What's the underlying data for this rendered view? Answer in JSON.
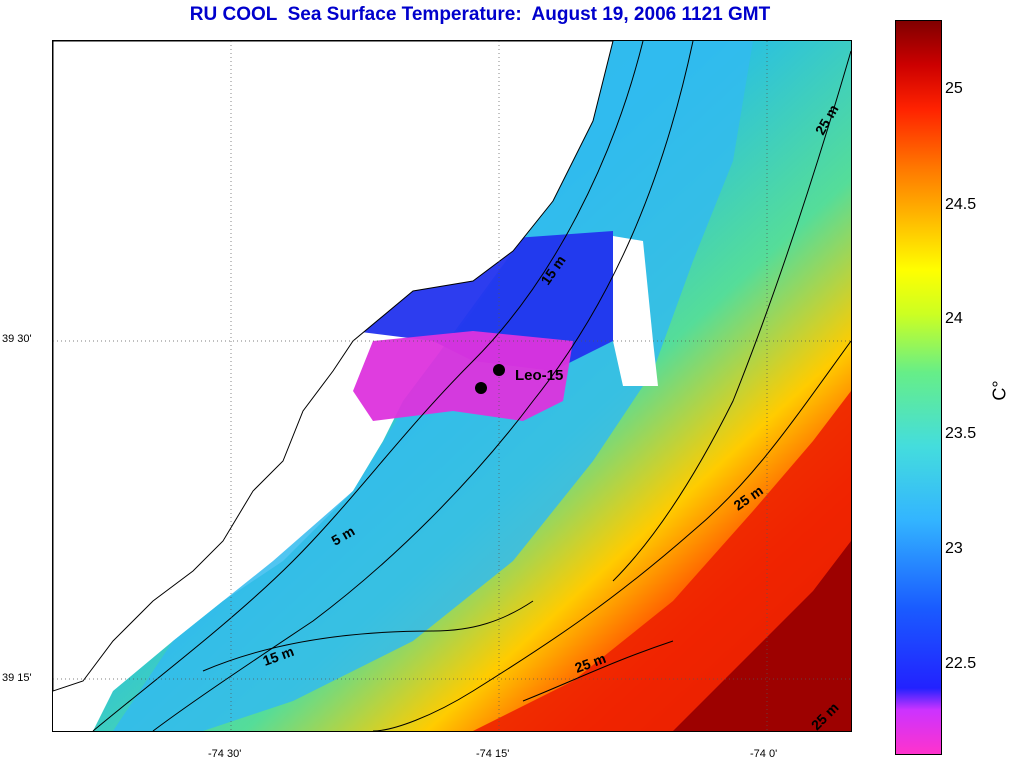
{
  "title": "RU COOL  Sea Surface Temperature:  August 19, 2006 1121 GMT",
  "x_tick_labels": [
    "-74 30'",
    "-74 15'",
    "-74 0'"
  ],
  "y_tick_labels": [
    "39 30'",
    "39 15'"
  ],
  "station": {
    "name": "Leo-15"
  },
  "contour_labels": [
    "25 m",
    "15 m",
    "25 m",
    "5 m",
    "15 m",
    "25 m",
    "25 m"
  ],
  "colorbar": {
    "unit": "C°",
    "ticks": [
      "25",
      "24.5",
      "24",
      "23.5",
      "23",
      "22.5"
    ],
    "colors": {
      "min": "#ff33cc",
      "low": "#2222ff",
      "mid": "#44dddd",
      "warm": "#ffff00",
      "hot": "#ff2200",
      "max": "#800000"
    }
  },
  "colors": {
    "title": "#0000cc",
    "land": "#ffffff",
    "missing": "#ffffff"
  }
}
